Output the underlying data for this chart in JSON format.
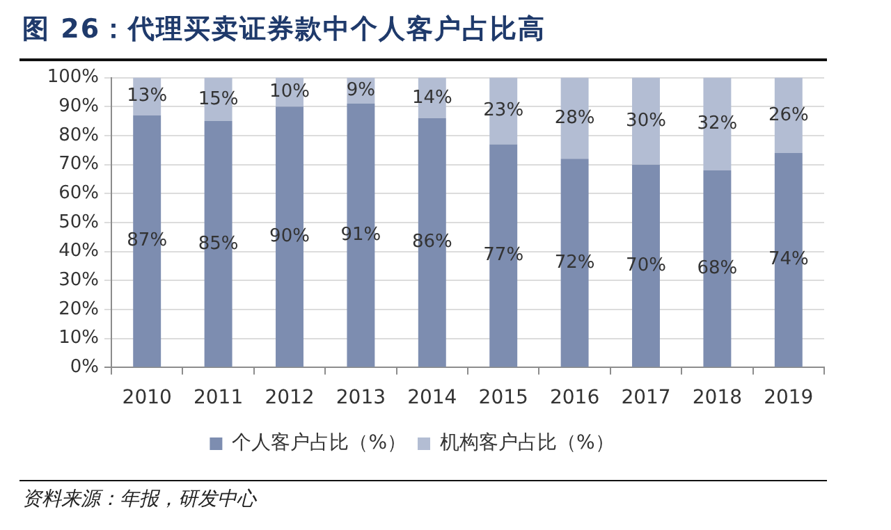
{
  "chart_data": {
    "type": "bar",
    "title": "图 26：代理买卖证券款中个人客户占比高",
    "categories": [
      "2010",
      "2011",
      "2012",
      "2013",
      "2014",
      "2015",
      "2016",
      "2017",
      "2018",
      "2019"
    ],
    "series": [
      {
        "name": "个人客户占比（%）",
        "color": "#7d8db0",
        "values": [
          87,
          85,
          90,
          91,
          86,
          77,
          72,
          70,
          68,
          74
        ],
        "value_labels": [
          "87%",
          "85%",
          "90%",
          "91%",
          "86%",
          "77%",
          "72%",
          "70%",
          "68%",
          "74%"
        ]
      },
      {
        "name": "机构客户占比（%）",
        "color": "#b3bdd3",
        "values": [
          13,
          15,
          10,
          9,
          14,
          23,
          28,
          30,
          32,
          26
        ],
        "value_labels": [
          "13%",
          "15%",
          "10%",
          "9%",
          "14%",
          "23%",
          "28%",
          "30%",
          "32%",
          "26%"
        ]
      }
    ],
    "stacked": true,
    "ylim": [
      0,
      100
    ],
    "yticks": [
      {
        "value": 0,
        "label": "0%"
      },
      {
        "value": 10,
        "label": "10%"
      },
      {
        "value": 20,
        "label": "20%"
      },
      {
        "value": 30,
        "label": "30%"
      },
      {
        "value": 40,
        "label": "40%"
      },
      {
        "value": 50,
        "label": "50%"
      },
      {
        "value": 60,
        "label": "60%"
      },
      {
        "value": 70,
        "label": "70%"
      },
      {
        "value": 80,
        "label": "80%"
      },
      {
        "value": 90,
        "label": "90%"
      },
      {
        "value": 100,
        "label": "100%"
      }
    ],
    "grid": "y",
    "legend": "bottom",
    "annotations": [
      "资料来源：年报，研发中心"
    ]
  }
}
